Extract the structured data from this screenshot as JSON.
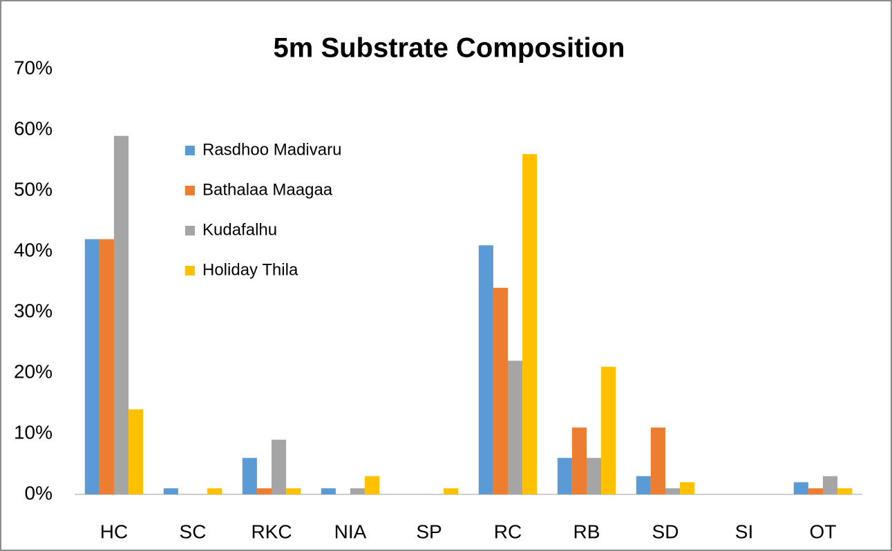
{
  "chart_data": {
    "type": "bar",
    "title": "5m Substrate Composition",
    "categories": [
      "HC",
      "SC",
      "RKC",
      "NIA",
      "SP",
      "RC",
      "RB",
      "SD",
      "SI",
      "OT"
    ],
    "series": [
      {
        "name": "Rasdhoo Madivaru",
        "color": "#5b9bd5",
        "values": [
          42,
          1,
          6,
          1,
          0,
          41,
          6,
          3,
          0,
          2
        ]
      },
      {
        "name": "Bathalaa Maagaa",
        "color": "#ed7d31",
        "values": [
          42,
          0,
          1,
          0,
          0,
          34,
          11,
          11,
          0,
          1
        ]
      },
      {
        "name": "Kudafalhu",
        "color": "#a5a5a5",
        "values": [
          59,
          0,
          9,
          1,
          0,
          22,
          6,
          1,
          0,
          3
        ]
      },
      {
        "name": "Holiday Thila",
        "color": "#ffc000",
        "values": [
          14,
          1,
          1,
          3,
          1,
          56,
          21,
          2,
          0,
          1
        ]
      }
    ],
    "ylim": [
      0,
      70
    ],
    "yticks": [
      {
        "value": 0,
        "label": "0%"
      },
      {
        "value": 10,
        "label": "10%"
      },
      {
        "value": 20,
        "label": "20%"
      },
      {
        "value": 30,
        "label": "30%"
      },
      {
        "value": 40,
        "label": "40%"
      },
      {
        "value": 50,
        "label": "50%"
      },
      {
        "value": 60,
        "label": "60%"
      },
      {
        "value": 70,
        "label": "70%"
      }
    ],
    "grid": false,
    "legend": "upper left"
  }
}
